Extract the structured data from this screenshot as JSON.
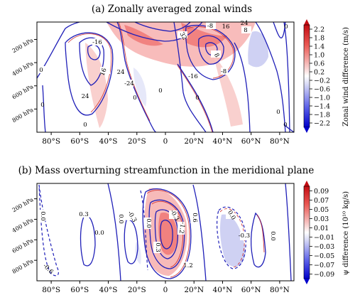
{
  "chart_data": [
    {
      "type": "contour",
      "title": "(a) Zonally averaged zonal winds",
      "x_ticks": [
        "80°S",
        "60°S",
        "40°S",
        "20°S",
        "0",
        "20°N",
        "40°N",
        "60°N",
        "80°N"
      ],
      "x_values": [
        -80,
        -60,
        -40,
        -20,
        0,
        20,
        40,
        60,
        80
      ],
      "xlim": [
        -90,
        90
      ],
      "y_ticks": [
        "200 hPa",
        "400 hPa",
        "600 hPa",
        "800 hPa"
      ],
      "y_values": [
        200,
        400,
        600,
        800
      ],
      "ylim": [
        1000,
        50
      ],
      "contour_labels": [
        "0",
        "-16",
        "16",
        "24",
        "-24",
        "24",
        "32",
        "8",
        "-8",
        "-16",
        "-8",
        "8",
        "0",
        "0",
        "0",
        "0",
        "0",
        "0",
        "0",
        "0",
        "16",
        "24"
      ],
      "colorbar": {
        "label": "Zonal wind difference (m/s)",
        "ticks": [
          "2.2",
          "1.8",
          "1.4",
          "1.0",
          "0.6",
          "0.2",
          "−0.2",
          "−0.6",
          "−1.0",
          "−1.4",
          "−1.8",
          "−2.2"
        ],
        "range": [
          -2.2,
          2.2
        ]
      }
    },
    {
      "type": "contour",
      "title": "(b) Mass overturning streamfunction in the meridional plane",
      "x_ticks": [
        "80°S",
        "60°S",
        "40°S",
        "20°S",
        "0",
        "20°N",
        "40°N",
        "60°N",
        "80°N"
      ],
      "x_values": [
        -80,
        -60,
        -40,
        -20,
        0,
        20,
        40,
        60,
        80
      ],
      "xlim": [
        -90,
        90
      ],
      "y_ticks": [
        "200 hPa",
        "400 hPa",
        "600 hPa",
        "800 hPa"
      ],
      "y_values": [
        200,
        400,
        600,
        800
      ],
      "ylim": [
        1000,
        50
      ],
      "contour_labels": [
        "0.0",
        "0.3",
        "0.0",
        "-0.3",
        "0.0",
        "-0.3",
        "0.3",
        "-1.2",
        "1.2",
        "0.6",
        "0.0",
        "-0.3",
        "0.0",
        "-0.6",
        "0.0"
      ],
      "colorbar": {
        "label": "ψ difference (10¹⁰ kg/s)",
        "ticks": [
          "0.09",
          "0.07",
          "0.05",
          "0.03",
          "0.01",
          "−0.01",
          "−0.03",
          "−0.05",
          "−0.07",
          "−0.09"
        ],
        "range": [
          -0.09,
          0.09
        ]
      }
    }
  ]
}
